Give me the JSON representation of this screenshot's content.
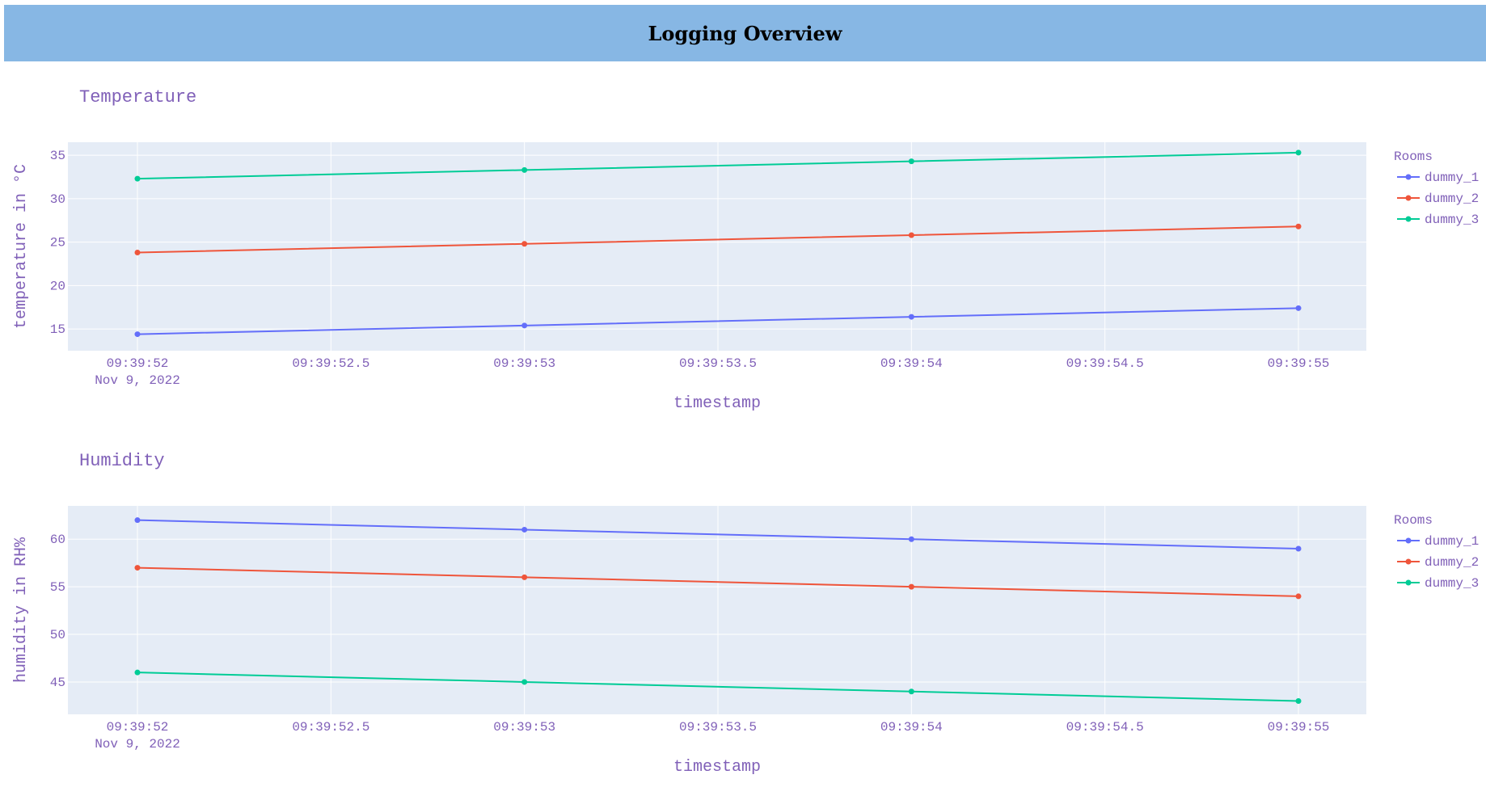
{
  "header": {
    "title": "Logging Overview"
  },
  "chart_data": [
    {
      "type": "line",
      "title": "Temperature",
      "xlabel": "timestamp",
      "ylabel": "temperature in °C",
      "x": [
        "09:39:52",
        "09:39:53",
        "09:39:54",
        "09:39:55"
      ],
      "xticks": [
        "09:39:52",
        "09:39:52.5",
        "09:39:53",
        "09:39:53.5",
        "09:39:54",
        "09:39:54.5",
        "09:39:55"
      ],
      "xdate": "Nov 9, 2022",
      "yticks": [
        15,
        20,
        25,
        30,
        35
      ],
      "ylim": [
        12.5,
        36.5
      ],
      "legend": {
        "title": "Rooms",
        "placement": "right"
      },
      "grid": true,
      "series": [
        {
          "name": "dummy_1",
          "color": "#636efa",
          "values": [
            14.4,
            15.4,
            16.4,
            17.4
          ]
        },
        {
          "name": "dummy_2",
          "color": "#ef553b",
          "values": [
            23.8,
            24.8,
            25.8,
            26.8
          ]
        },
        {
          "name": "dummy_3",
          "color": "#00cc96",
          "values": [
            32.3,
            33.3,
            34.3,
            35.3
          ]
        }
      ]
    },
    {
      "type": "line",
      "title": "Humidity",
      "xlabel": "timestamp",
      "ylabel": "humidity in RH%",
      "x": [
        "09:39:52",
        "09:39:53",
        "09:39:54",
        "09:39:55"
      ],
      "xticks": [
        "09:39:52",
        "09:39:52.5",
        "09:39:53",
        "09:39:53.5",
        "09:39:54",
        "09:39:54.5",
        "09:39:55"
      ],
      "xdate": "Nov 9, 2022",
      "yticks": [
        45,
        50,
        55,
        60
      ],
      "ylim": [
        41.6,
        63.5
      ],
      "legend": {
        "title": "Rooms",
        "placement": "right"
      },
      "grid": true,
      "series": [
        {
          "name": "dummy_1",
          "color": "#636efa",
          "values": [
            62,
            61,
            60,
            59
          ]
        },
        {
          "name": "dummy_2",
          "color": "#ef553b",
          "values": [
            57,
            56,
            55,
            54
          ]
        },
        {
          "name": "dummy_3",
          "color": "#00cc96",
          "values": [
            46,
            45,
            44,
            43
          ]
        }
      ]
    }
  ]
}
